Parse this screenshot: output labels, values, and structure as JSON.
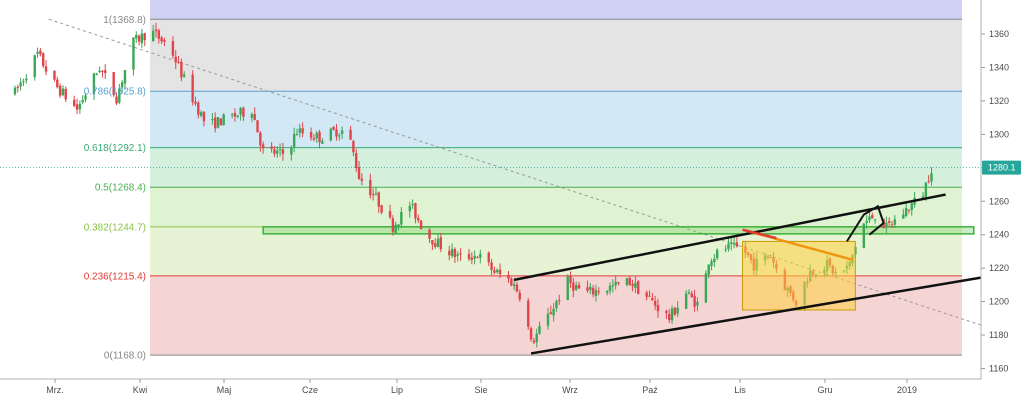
{
  "chart_data": {
    "type": "candlestick",
    "ylim": [
      1155,
      1378
    ],
    "y_ticks": [
      1160,
      1180,
      1200,
      1220,
      1240,
      1260,
      1280,
      1300,
      1320,
      1340,
      1360
    ],
    "x_ticks": [
      "Mrz.",
      "Kwi",
      "Maj",
      "Cze",
      "Lip",
      "Sie",
      "Wrz",
      "Paź",
      "Lis",
      "Gru",
      "2019"
    ],
    "last_price": "1280.1",
    "grid": false,
    "fib_levels": [
      {
        "ratio": 1,
        "price": 1368.8,
        "label": "1(1368.8)",
        "color": "#888888"
      },
      {
        "ratio": 0.786,
        "price": 1325.8,
        "label": "0.786(1325.8)",
        "color": "#5aa0d0"
      },
      {
        "ratio": 0.618,
        "price": 1292.1,
        "label": "0.618(1292.1)",
        "color": "#3aaa7a"
      },
      {
        "ratio": 0.5,
        "price": 1268.4,
        "label": "0.5(1268.4)",
        "color": "#4caf50"
      },
      {
        "ratio": 0.382,
        "price": 1244.7,
        "label": "0.382(1244.7)",
        "color": "#8bc34a"
      },
      {
        "ratio": 0.236,
        "price": 1215.4,
        "label": "0.236(1215.4)",
        "color": "#e53935"
      },
      {
        "ratio": 0,
        "price": 1168.0,
        "label": "0(1168.0)",
        "color": "#888888"
      }
    ],
    "zone_colors": [
      "#cfd0f3",
      "#e4e4e4",
      "#d3e8f5",
      "#d4efdc",
      "#dff3d2",
      "#e6f4d5",
      "#f5d4d4"
    ],
    "candle_colors": {
      "up": "#3aa757",
      "down": "#e0454b"
    },
    "anchors": [
      {
        "d": 0,
        "p": 1325
      },
      {
        "d": 8,
        "p": 1348
      },
      {
        "d": 14,
        "p": 1330
      },
      {
        "d": 22,
        "p": 1315
      },
      {
        "d": 30,
        "p": 1340
      },
      {
        "d": 36,
        "p": 1322
      },
      {
        "d": 42,
        "p": 1355
      },
      {
        "d": 48,
        "p": 1362
      },
      {
        "d": 55,
        "p": 1352
      },
      {
        "d": 62,
        "p": 1325
      },
      {
        "d": 68,
        "p": 1305
      },
      {
        "d": 76,
        "p": 1310
      },
      {
        "d": 84,
        "p": 1315
      },
      {
        "d": 88,
        "p": 1290
      },
      {
        "d": 96,
        "p": 1288
      },
      {
        "d": 100,
        "p": 1302
      },
      {
        "d": 108,
        "p": 1298
      },
      {
        "d": 114,
        "p": 1302
      },
      {
        "d": 118,
        "p": 1302
      },
      {
        "d": 122,
        "p": 1275
      },
      {
        "d": 128,
        "p": 1262
      },
      {
        "d": 134,
        "p": 1245
      },
      {
        "d": 140,
        "p": 1258
      },
      {
        "d": 146,
        "p": 1240
      },
      {
        "d": 152,
        "p": 1232
      },
      {
        "d": 158,
        "p": 1226
      },
      {
        "d": 164,
        "p": 1228
      },
      {
        "d": 170,
        "p": 1218
      },
      {
        "d": 176,
        "p": 1212
      },
      {
        "d": 180,
        "p": 1202
      },
      {
        "d": 183,
        "p": 1175
      },
      {
        "d": 188,
        "p": 1188
      },
      {
        "d": 196,
        "p": 1212
      },
      {
        "d": 202,
        "p": 1205
      },
      {
        "d": 210,
        "p": 1208
      },
      {
        "d": 218,
        "p": 1212
      },
      {
        "d": 226,
        "p": 1200
      },
      {
        "d": 232,
        "p": 1190
      },
      {
        "d": 238,
        "p": 1205
      },
      {
        "d": 243,
        "p": 1197
      },
      {
        "d": 246,
        "p": 1225
      },
      {
        "d": 252,
        "p": 1232
      },
      {
        "d": 258,
        "p": 1232
      },
      {
        "d": 262,
        "p": 1222
      },
      {
        "d": 268,
        "p": 1228
      },
      {
        "d": 272,
        "p": 1212
      },
      {
        "d": 277,
        "p": 1200
      },
      {
        "d": 282,
        "p": 1218
      },
      {
        "d": 288,
        "p": 1222
      },
      {
        "d": 292,
        "p": 1215
      },
      {
        "d": 296,
        "p": 1222
      },
      {
        "d": 300,
        "p": 1245
      },
      {
        "d": 305,
        "p": 1252
      },
      {
        "d": 309,
        "p": 1244
      },
      {
        "d": 313,
        "p": 1250
      },
      {
        "d": 318,
        "p": 1258
      },
      {
        "d": 322,
        "p": 1265
      },
      {
        "d": 325,
        "p": 1280
      }
    ],
    "drawings": {
      "diagonal": [
        {
          "d": 12,
          "p": 1368.8
        },
        {
          "d": 375,
          "p": 1168
        }
      ],
      "resistance_box": [
        {
          "d": 88,
          "p": 1244.7
        },
        {
          "d": 340,
          "p": 1240.5
        }
      ],
      "upper_channel": [
        {
          "d": 177,
          "p": 1213
        },
        {
          "d": 330,
          "p": 1264
        }
      ],
      "lower_channel": [
        {
          "d": 183,
          "p": 1169
        },
        {
          "d": 352,
          "p": 1217
        }
      ],
      "orange_line": [
        {
          "d": 258,
          "p": 1243
        },
        {
          "d": 297,
          "p": 1225
        }
      ],
      "red_line": [
        {
          "d": 258,
          "p": 1243
        },
        {
          "d": 270,
          "p": 1238
        }
      ],
      "yellow_rect": [
        {
          "d": 258,
          "p": 1236
        },
        {
          "d": 298,
          "p": 1195
        }
      ],
      "arrow": [
        {
          "d": 295,
          "p": 1236
        },
        {
          "d": 301,
          "p": 1252
        },
        {
          "d": 306,
          "p": 1257
        },
        {
          "d": 308,
          "p": 1247
        },
        {
          "d": 303,
          "p": 1240
        }
      ]
    }
  }
}
